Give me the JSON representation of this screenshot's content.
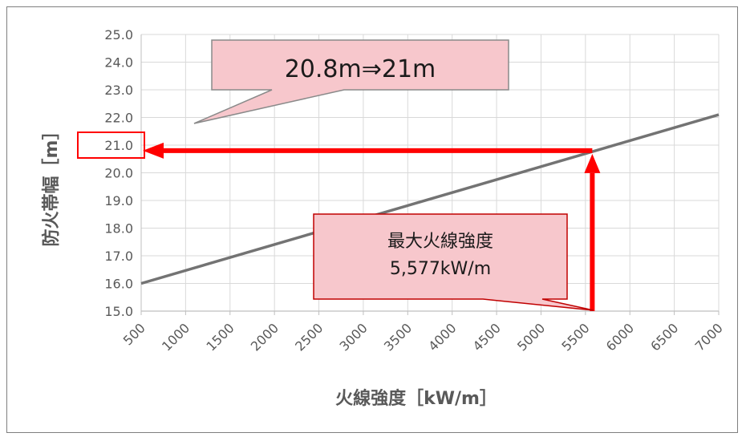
{
  "chart_data": {
    "type": "line",
    "xlabel": "火線強度［kW/m］",
    "ylabel": "防火帯幅［m］",
    "xlim": [
      500,
      7000
    ],
    "ylim": [
      15.0,
      25.0
    ],
    "x_ticks": [
      "500",
      "1000",
      "1500",
      "2000",
      "2500",
      "3000",
      "3500",
      "4000",
      "4500",
      "5000",
      "5500",
      "6000",
      "6500",
      "7000"
    ],
    "y_ticks": [
      "15.0",
      "16.0",
      "17.0",
      "18.0",
      "19.0",
      "20.0",
      "21.0",
      "22.0",
      "23.0",
      "24.0",
      "25.0"
    ],
    "grid": true,
    "series": [
      {
        "x": [
          500,
          7000
        ],
        "y": [
          16.0,
          22.1
        ]
      }
    ],
    "highlight": {
      "x": 5577,
      "y": 20.8,
      "y_rounded": "21.0"
    },
    "annotations": {
      "top_callout": "20.8m⇒21m",
      "bottom_callout_line1": "最大火線強度",
      "bottom_callout_line2": "5,577kW/m"
    },
    "colors": {
      "line": "#737373",
      "grid": "#d9d9d9",
      "arrow": "#ff0000",
      "callout_fill": "#f7c7cc",
      "callout_border": "#8a8a8a",
      "bottom_callout_border": "#c00000"
    }
  }
}
